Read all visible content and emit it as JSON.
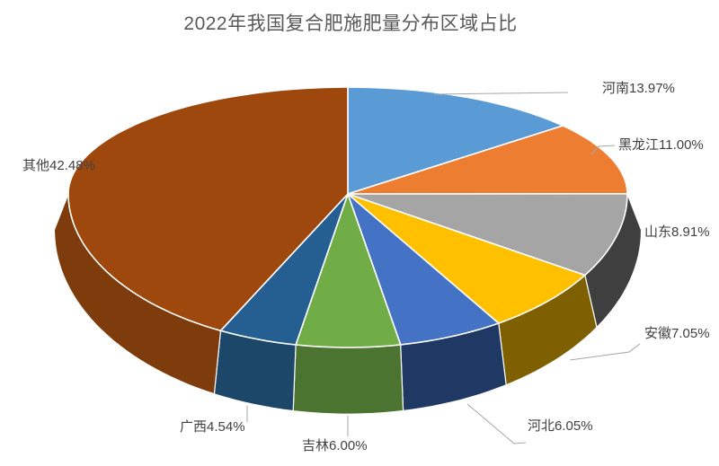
{
  "title": "2022年我国复合肥施肥量分布区域占比",
  "chart_data": {
    "type": "pie",
    "style": "3d-pie",
    "title": "2022年我国复合肥施肥量分布区域占比",
    "categories": [
      "河南",
      "黑龙江",
      "山东",
      "安徽",
      "河北",
      "吉林",
      "广西",
      "其他"
    ],
    "values": [
      13.97,
      11.0,
      8.91,
      7.05,
      6.05,
      6.0,
      4.54,
      42.48
    ],
    "unit": "%",
    "labels": [
      "河南13.97%",
      "黑龙江11.00%",
      "山东8.91%",
      "安徽7.05%",
      "河北6.05%",
      "吉林6.00%",
      "广西4.54%",
      "其他42.48%"
    ],
    "ids": [
      "henan",
      "heilongjiang",
      "shandong",
      "anhui",
      "hebei",
      "jilin",
      "guangxi",
      "qita"
    ],
    "colors": [
      "#5B9BD5",
      "#ED7D31",
      "#A5A5A5",
      "#FFC000",
      "#4472C4",
      "#70AD47",
      "#255E91",
      "#9E480E"
    ],
    "side_colors": [
      "#3E6E99",
      "#B85C1F",
      "#3F3F3F",
      "#7F6000",
      "#1F3864",
      "#4A7430",
      "#1C4769",
      "#7E3B0B"
    ],
    "start_angle_deg": 0,
    "direction": "clockwise",
    "legend": "none",
    "title_color": "#595959",
    "label_color": "#404040",
    "leader_line_color": "#A6A6A6",
    "slice_border_color": "#FFFFFF"
  }
}
